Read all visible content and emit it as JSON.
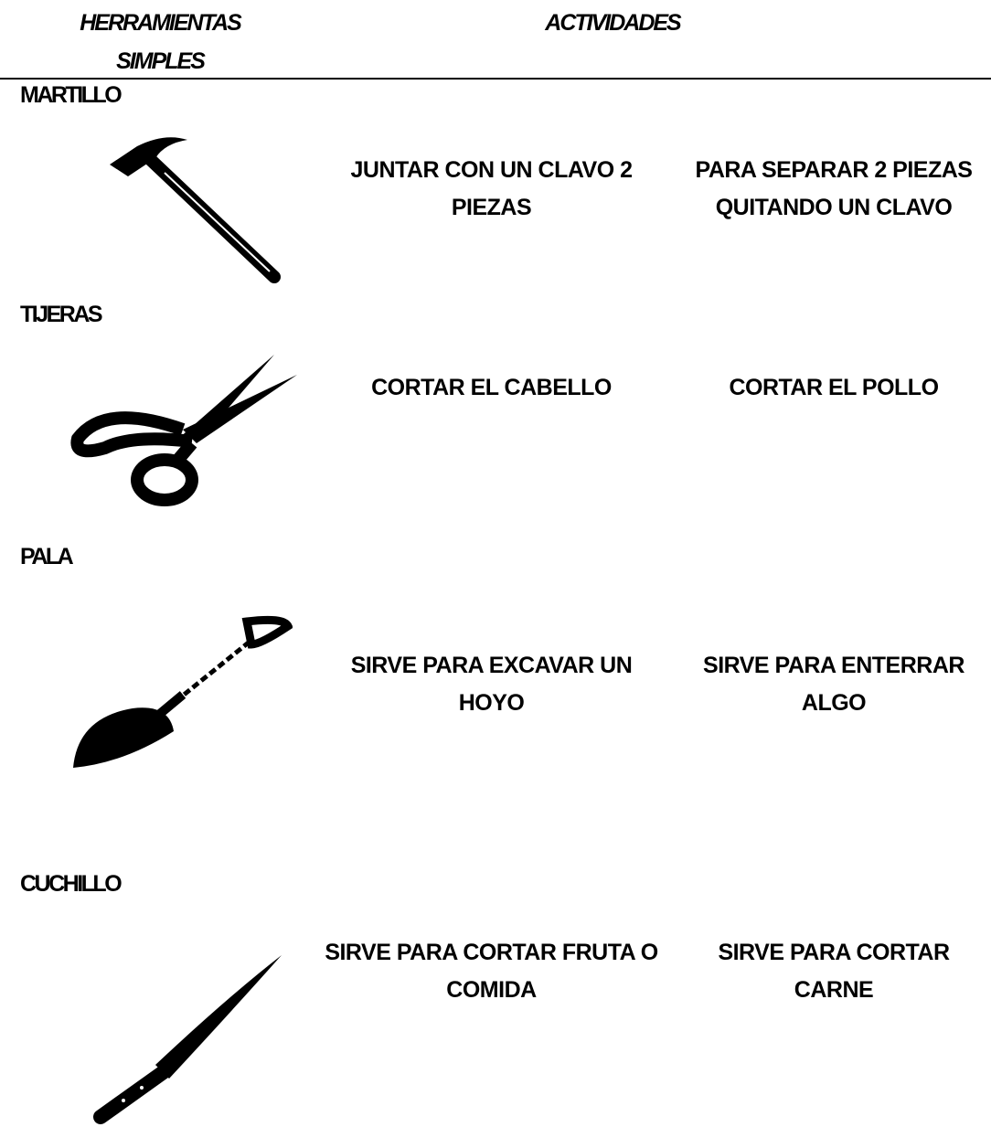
{
  "header": {
    "tool_column": "HERRAMIENTAS SIMPLES",
    "activities_column": "ACTIVIDADES"
  },
  "rows": [
    {
      "tool": "MARTILLO",
      "activities": [
        "JUNTAR CON UN CLAVO 2 PIEZAS",
        "PARA SEPARAR 2 PIEZAS QUITANDO UN CLAVO"
      ]
    },
    {
      "tool": "TIJERAS",
      "activities": [
        "CORTAR EL CABELLO",
        "CORTAR EL POLLO"
      ]
    },
    {
      "tool": "PALA",
      "activities": [
        "SIRVE PARA EXCAVAR UN HOYO",
        "SIRVE PARA ENTERRAR ALGO"
      ]
    },
    {
      "tool": "CUCHILLO",
      "activities": [
        "SIRVE PARA CORTAR FRUTA O COMIDA",
        "SIRVE PARA CORTAR CARNE"
      ]
    }
  ]
}
